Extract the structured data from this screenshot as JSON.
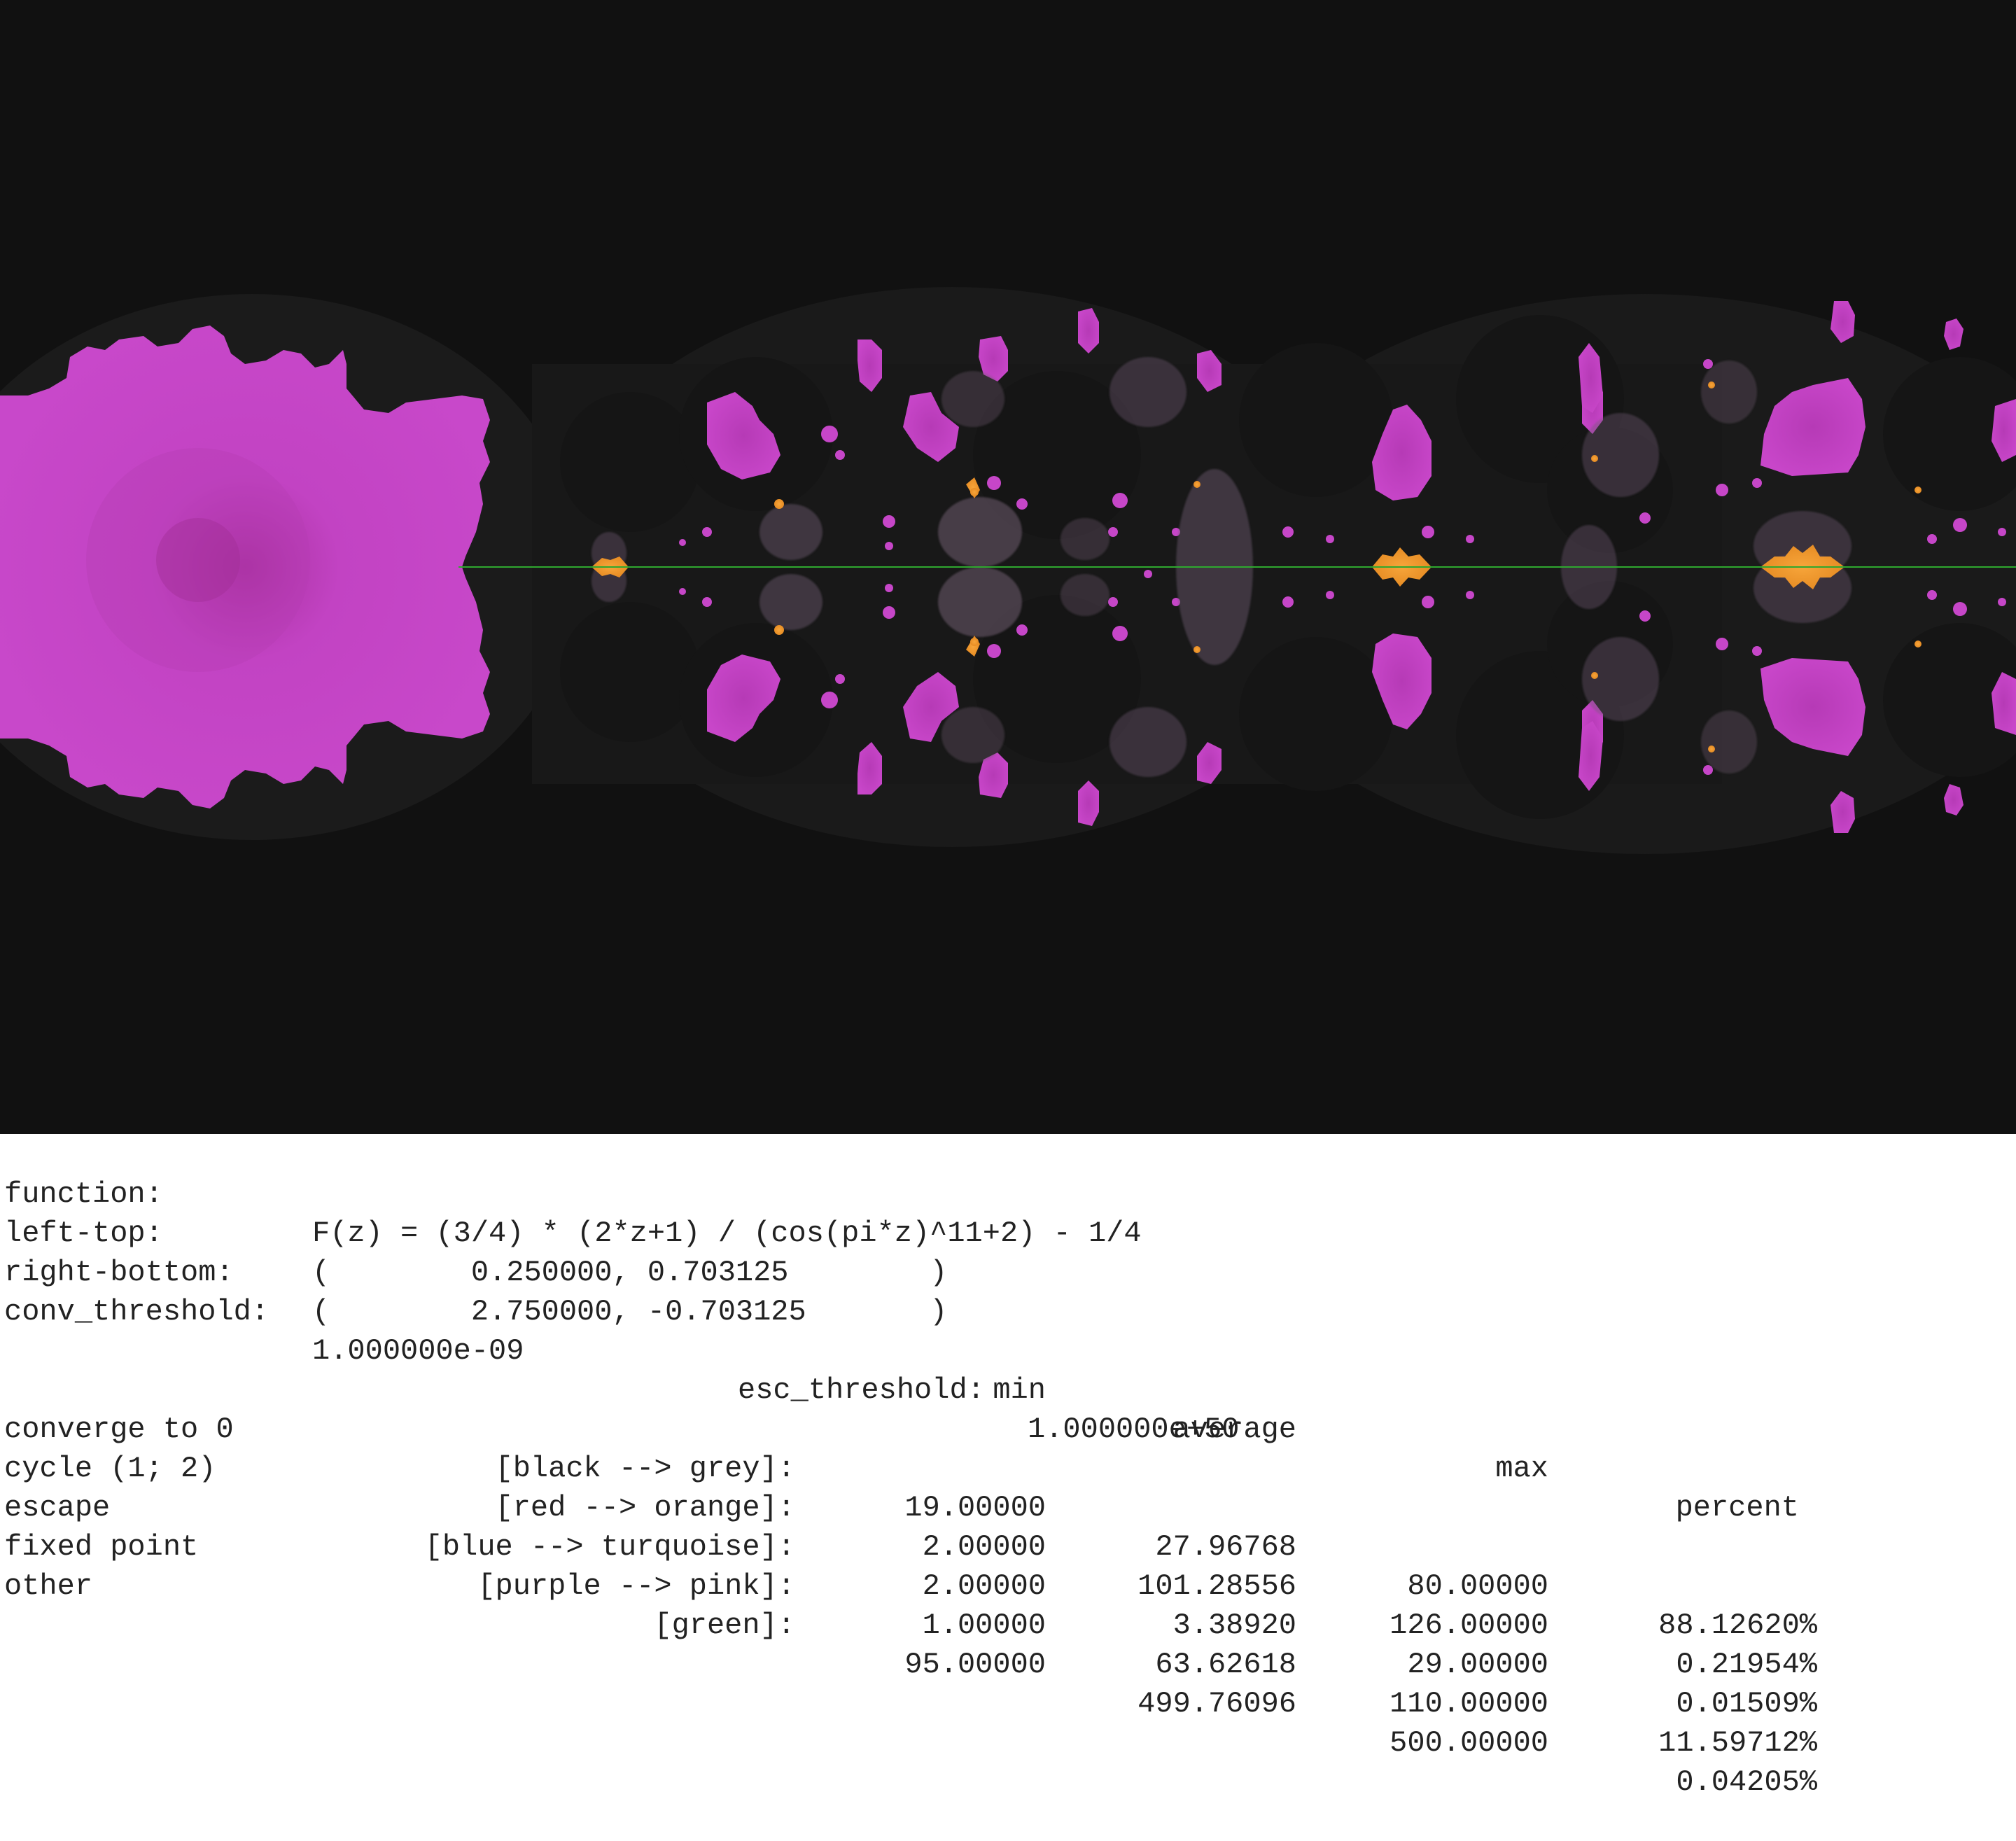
{
  "colors": {
    "background": "#111111",
    "fixed_point": "#c646c8",
    "cycle": "#f0962a",
    "other": "#2fa82f",
    "escape": "#2a3a8a",
    "converge": "#1e1e1e"
  },
  "info": {
    "function_label": "function:",
    "function_value": "F(z) = (3/4) * (2*z+1) / (cos(pi*z)^11+2) - 1/4",
    "left_top_label": "left-top:",
    "left_top_value": "(        0.250000, 0.703125        )",
    "right_bottom_label": "right-bottom:",
    "right_bottom_value": "(        2.750000, -0.703125       )",
    "conv_label": "conv_threshold:",
    "conv_value": "1.000000e-09",
    "esc_label": "esc_threshold:",
    "esc_value": "1.000000e+50"
  },
  "stats": {
    "headers": {
      "min": "min",
      "average": "average",
      "max": "max",
      "percent": "percent"
    },
    "rows": [
      {
        "name": "converge to 0",
        "color": "[black --> grey]:",
        "min": "19.00000",
        "average": "27.96768",
        "max": "80.00000",
        "percent": "88.12620%"
      },
      {
        "name": "cycle (1; 2)",
        "color": "[red --> orange]:",
        "min": "2.00000",
        "average": "101.28556",
        "max": "126.00000",
        "percent": "0.21954%"
      },
      {
        "name": "escape",
        "color": "[blue --> turquoise]:",
        "min": "2.00000",
        "average": "3.38920",
        "max": "29.00000",
        "percent": "0.01509%"
      },
      {
        "name": "fixed point",
        "color": "[purple --> pink]:",
        "min": "1.00000",
        "average": "63.62618",
        "max": "110.00000",
        "percent": "11.59712%"
      },
      {
        "name": "other",
        "color": "[green]:",
        "min": "95.00000",
        "average": "499.76096",
        "max": "500.00000",
        "percent": "0.04205%"
      }
    ]
  }
}
